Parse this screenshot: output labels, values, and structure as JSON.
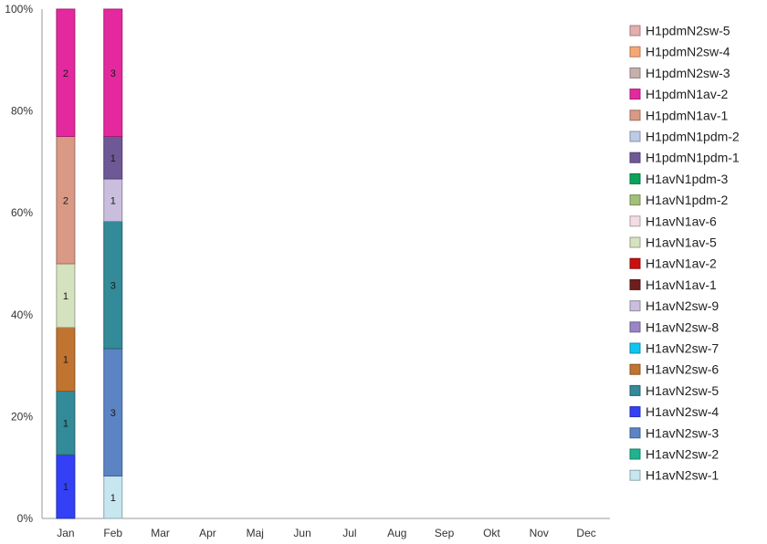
{
  "chart_data": {
    "type": "bar",
    "stacked": true,
    "normalized": true,
    "categories": [
      "Jan",
      "Feb",
      "Mar",
      "Apr",
      "Maj",
      "Jun",
      "Jul",
      "Aug",
      "Sep",
      "Okt",
      "Nov",
      "Dec"
    ],
    "y_ticks": [
      "0%",
      "20%",
      "40%",
      "60%",
      "80%",
      "100%"
    ],
    "ylim": [
      0,
      100
    ],
    "grid": false,
    "legend_position": "right",
    "series": [
      {
        "name": "H1avN2sw-1",
        "color": "#c6e6f0",
        "values": [
          0,
          1,
          0,
          0,
          0,
          0,
          0,
          0,
          0,
          0,
          0,
          0
        ]
      },
      {
        "name": "H1avN2sw-2",
        "color": "#1fb38f",
        "values": [
          0,
          0,
          0,
          0,
          0,
          0,
          0,
          0,
          0,
          0,
          0,
          0
        ]
      },
      {
        "name": "H1avN2sw-3",
        "color": "#5b84c4",
        "values": [
          0,
          3,
          0,
          0,
          0,
          0,
          0,
          0,
          0,
          0,
          0,
          0
        ]
      },
      {
        "name": "H1avN2sw-4",
        "color": "#3340f5",
        "values": [
          1,
          0,
          0,
          0,
          0,
          0,
          0,
          0,
          0,
          0,
          0,
          0
        ]
      },
      {
        "name": "H1avN2sw-5",
        "color": "#338a99",
        "values": [
          1,
          3,
          0,
          0,
          0,
          0,
          0,
          0,
          0,
          0,
          0,
          0
        ]
      },
      {
        "name": "H1avN2sw-6",
        "color": "#c07430",
        "values": [
          1,
          0,
          0,
          0,
          0,
          0,
          0,
          0,
          0,
          0,
          0,
          0
        ]
      },
      {
        "name": "H1avN2sw-7",
        "color": "#12c4f2",
        "values": [
          0,
          0,
          0,
          0,
          0,
          0,
          0,
          0,
          0,
          0,
          0,
          0
        ]
      },
      {
        "name": "H1avN2sw-8",
        "color": "#9a86c4",
        "values": [
          0,
          0,
          0,
          0,
          0,
          0,
          0,
          0,
          0,
          0,
          0,
          0
        ]
      },
      {
        "name": "H1avN2sw-9",
        "color": "#c9bedd",
        "values": [
          0,
          1,
          0,
          0,
          0,
          0,
          0,
          0,
          0,
          0,
          0,
          0
        ]
      },
      {
        "name": "H1avN1av-1",
        "color": "#6e1e1e",
        "values": [
          0,
          0,
          0,
          0,
          0,
          0,
          0,
          0,
          0,
          0,
          0,
          0
        ]
      },
      {
        "name": "H1avN1av-2",
        "color": "#c81010",
        "values": [
          0,
          0,
          0,
          0,
          0,
          0,
          0,
          0,
          0,
          0,
          0,
          0
        ]
      },
      {
        "name": "H1avN1av-5",
        "color": "#d4e2c0",
        "values": [
          1,
          0,
          0,
          0,
          0,
          0,
          0,
          0,
          0,
          0,
          0,
          0
        ]
      },
      {
        "name": "H1avN1av-6",
        "color": "#f3dde3",
        "values": [
          0,
          0,
          0,
          0,
          0,
          0,
          0,
          0,
          0,
          0,
          0,
          0
        ]
      },
      {
        "name": "H1avN1pdm-2",
        "color": "#a3c07a",
        "values": [
          0,
          0,
          0,
          0,
          0,
          0,
          0,
          0,
          0,
          0,
          0,
          0
        ]
      },
      {
        "name": "H1avN1pdm-3",
        "color": "#0aa35a",
        "values": [
          0,
          0,
          0,
          0,
          0,
          0,
          0,
          0,
          0,
          0,
          0,
          0
        ]
      },
      {
        "name": "H1pdmN1pdm-1",
        "color": "#6f5896",
        "values": [
          0,
          1,
          0,
          0,
          0,
          0,
          0,
          0,
          0,
          0,
          0,
          0
        ]
      },
      {
        "name": "H1pdmN1pdm-2",
        "color": "#bccbe6",
        "values": [
          0,
          0,
          0,
          0,
          0,
          0,
          0,
          0,
          0,
          0,
          0,
          0
        ]
      },
      {
        "name": "H1pdmN1av-1",
        "color": "#d99985",
        "values": [
          2,
          0,
          0,
          0,
          0,
          0,
          0,
          0,
          0,
          0,
          0,
          0
        ]
      },
      {
        "name": "H1pdmN1av-2",
        "color": "#e4299f",
        "values": [
          2,
          3,
          0,
          0,
          0,
          0,
          0,
          0,
          0,
          0,
          0,
          0
        ]
      },
      {
        "name": "H1pdmN2sw-3",
        "color": "#c6b0ae",
        "values": [
          0,
          0,
          0,
          0,
          0,
          0,
          0,
          0,
          0,
          0,
          0,
          0
        ]
      },
      {
        "name": "H1pdmN2sw-4",
        "color": "#f6a774",
        "values": [
          0,
          0,
          0,
          0,
          0,
          0,
          0,
          0,
          0,
          0,
          0,
          0
        ]
      },
      {
        "name": "H1pdmN2sw-5",
        "color": "#e2aeae",
        "values": [
          0,
          0,
          0,
          0,
          0,
          0,
          0,
          0,
          0,
          0,
          0,
          0
        ]
      }
    ]
  }
}
